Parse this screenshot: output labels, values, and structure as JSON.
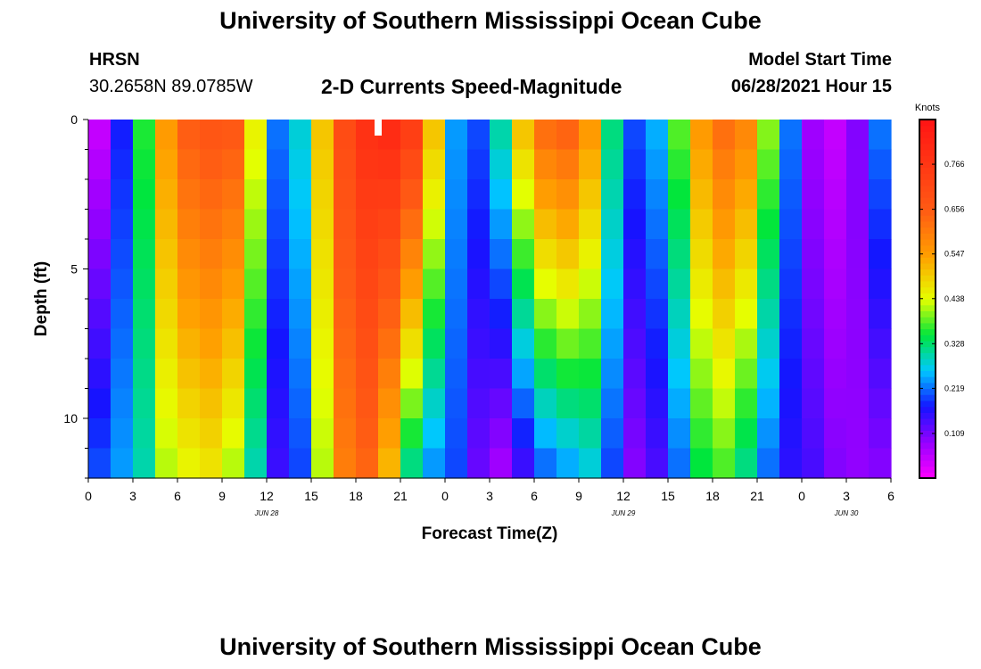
{
  "header": {
    "title_top": "University of Southern Mississippi Ocean Cube",
    "title_bottom": "University of Southern Mississippi Ocean Cube",
    "station": "HRSN",
    "coords": "30.2658N  89.0785W",
    "subtitle": "2-D Currents Speed-Magnitude",
    "model_label": "Model Start Time",
    "model_time": "06/28/2021 Hour 15"
  },
  "chart_data": {
    "type": "heatmap",
    "title": "2-D Currents Speed-Magnitude",
    "xlabel": "Forecast Time(Z)",
    "ylabel": "Depth (ft)",
    "xlim": [
      0,
      54
    ],
    "ylim": [
      0,
      12
    ],
    "y_ticks": [
      "0",
      "5",
      "10"
    ],
    "y_tick_values": [
      0,
      5,
      10
    ],
    "x_ticks": [
      "0",
      "3",
      "6",
      "9",
      "12",
      "15",
      "18",
      "21",
      "0",
      "3",
      "6",
      "9",
      "12",
      "15",
      "18",
      "21",
      "0",
      "3",
      "6"
    ],
    "x_tick_values": [
      0,
      3,
      6,
      9,
      12,
      15,
      18,
      21,
      24,
      27,
      30,
      33,
      36,
      39,
      42,
      45,
      48,
      51,
      54
    ],
    "date_labels": [
      "JUN 28",
      "JUN 29",
      "JUN 30"
    ],
    "date_label_hours": [
      12,
      36,
      51
    ],
    "marker_hour": 19.5,
    "colorbar": {
      "unit": "Knots",
      "ticks": [
        "0.766",
        "0.656",
        "0.547",
        "0.438",
        "0.328",
        "0.219",
        "0.109"
      ],
      "tick_values": [
        0.766,
        0.656,
        0.547,
        0.438,
        0.328,
        0.219,
        0.109
      ],
      "min": 0.0,
      "max": 0.875
    },
    "depth_profile_note": "speed (knots) by depth row (top=0 ft, bottom=12 ft) sampled every 1.5 h",
    "hours": [
      0,
      1.5,
      3,
      4.5,
      6,
      7.5,
      9,
      10.5,
      12,
      13.5,
      15,
      16.5,
      18,
      19.5,
      21,
      22.5,
      24,
      25.5,
      27,
      28.5,
      30,
      31.5,
      33,
      34.5,
      36,
      37.5,
      39,
      40.5,
      42,
      43.5,
      45,
      46.5,
      48,
      49.5,
      51,
      52.5,
      54
    ],
    "surface_speed": [
      0.05,
      0.18,
      0.36,
      0.55,
      0.65,
      0.67,
      0.66,
      0.45,
      0.22,
      0.28,
      0.5,
      0.7,
      0.78,
      0.8,
      0.74,
      0.5,
      0.24,
      0.2,
      0.3,
      0.5,
      0.62,
      0.64,
      0.55,
      0.32,
      0.2,
      0.25,
      0.38,
      0.55,
      0.62,
      0.58,
      0.4,
      0.22,
      0.08,
      0.05,
      0.1,
      0.22,
      0.32
    ],
    "bottom_speed": [
      0.2,
      0.24,
      0.3,
      0.42,
      0.45,
      0.47,
      0.42,
      0.3,
      0.15,
      0.2,
      0.42,
      0.6,
      0.64,
      0.52,
      0.32,
      0.24,
      0.2,
      0.12,
      0.08,
      0.15,
      0.22,
      0.25,
      0.28,
      0.2,
      0.1,
      0.14,
      0.22,
      0.35,
      0.38,
      0.32,
      0.22,
      0.16,
      0.14,
      0.1,
      0.09,
      0.1,
      0.1
    ]
  }
}
